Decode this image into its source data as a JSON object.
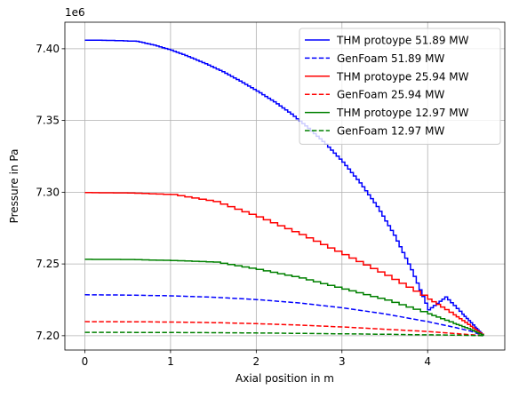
{
  "chart_data": {
    "type": "line",
    "xlabel": "Axial position in m",
    "ylabel": "Pressure in Pa",
    "offset_label": "1e6",
    "xlim": [
      -0.233,
      4.9
    ],
    "ylim": [
      7.19,
      7.4185
    ],
    "y_scale_factor": 1000000,
    "x_ticks": [
      0,
      1,
      2,
      3,
      4
    ],
    "y_ticks": [
      7.2,
      7.25,
      7.3,
      7.35,
      7.4
    ],
    "x_tick_labels": [
      "0",
      "1",
      "2",
      "3",
      "4"
    ],
    "y_tick_labels": [
      "7.20",
      "7.25",
      "7.30",
      "7.35",
      "7.40"
    ],
    "grid": true,
    "legend_position": "top-right",
    "series": [
      {
        "name": "THM protoype 51.89 MW",
        "color": "#0000ff",
        "style": "solid",
        "stepped": true,
        "x": [
          0,
          0.3,
          0.6,
          0.8,
          1.0,
          1.2,
          1.4,
          1.6,
          1.8,
          2.0,
          2.2,
          2.4,
          2.6,
          2.8,
          3.0,
          3.2,
          3.4,
          3.6,
          3.8,
          4.0,
          4.2,
          4.4,
          4.55,
          4.65
        ],
        "y": [
          7.406,
          7.4058,
          7.4052,
          7.4025,
          7.399,
          7.3945,
          7.3895,
          7.384,
          7.3775,
          7.3705,
          7.363,
          7.3545,
          7.3445,
          7.3335,
          7.321,
          7.3065,
          7.29,
          7.27,
          7.246,
          7.218,
          7.227,
          7.215,
          7.206,
          7.2
        ]
      },
      {
        "name": "GenFoam 51.89 MW",
        "color": "#0000ff",
        "style": "dashed",
        "stepped": false,
        "x": [
          0,
          0.5,
          1.0,
          1.5,
          2.0,
          2.5,
          3.0,
          3.5,
          4.0,
          4.3,
          4.5,
          4.65
        ],
        "y": [
          7.2285,
          7.2283,
          7.2278,
          7.2268,
          7.2252,
          7.2228,
          7.2195,
          7.2152,
          7.2098,
          7.206,
          7.2032,
          7.2
        ]
      },
      {
        "name": "THM protoype 25.94 MW",
        "color": "#ff0000",
        "style": "solid",
        "stepped": true,
        "x": [
          0,
          0.5,
          1.0,
          1.5,
          2.0,
          2.5,
          3.0,
          3.5,
          4.0,
          4.3,
          4.5,
          4.65
        ],
        "y": [
          7.2997,
          7.2995,
          7.2984,
          7.2935,
          7.2828,
          7.2705,
          7.2565,
          7.242,
          7.2255,
          7.2145,
          7.2065,
          7.2
        ]
      },
      {
        "name": "GenFoam 25.94 MW",
        "color": "#ff0000",
        "style": "dashed",
        "stepped": false,
        "x": [
          0,
          0.5,
          1.0,
          1.5,
          2.0,
          2.5,
          3.0,
          3.5,
          4.0,
          4.3,
          4.5,
          4.65
        ],
        "y": [
          7.2098,
          7.2097,
          7.2095,
          7.2091,
          7.2084,
          7.2074,
          7.2061,
          7.2045,
          7.2029,
          7.2016,
          7.2007,
          7.2
        ]
      },
      {
        "name": "THM protoype 12.97 MW",
        "color": "#008000",
        "style": "solid",
        "stepped": true,
        "x": [
          0,
          0.5,
          1.0,
          1.5,
          2.0,
          2.5,
          3.0,
          3.5,
          4.0,
          4.3,
          4.5,
          4.65
        ],
        "y": [
          7.2532,
          7.2531,
          7.2524,
          7.2513,
          7.2462,
          7.2402,
          7.2325,
          7.2248,
          7.2152,
          7.2085,
          7.2042,
          7.2
        ]
      },
      {
        "name": "GenFoam 12.97 MW",
        "color": "#008000",
        "style": "dashed",
        "stepped": false,
        "x": [
          0,
          0.5,
          1.0,
          1.5,
          2.0,
          2.5,
          3.0,
          3.5,
          4.0,
          4.3,
          4.5,
          4.65
        ],
        "y": [
          7.2023,
          7.2023,
          7.2022,
          7.2021,
          7.2019,
          7.2016,
          7.2013,
          7.201,
          7.2006,
          7.2004,
          7.2002,
          7.2
        ]
      }
    ]
  }
}
